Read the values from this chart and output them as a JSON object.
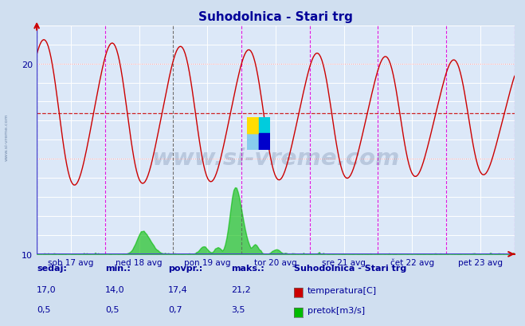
{
  "title": "Suhodolnica - Stari trg",
  "title_color": "#000099",
  "bg_color": "#d0dff0",
  "plot_bg_color": "#dce8f8",
  "grid_color": "#ffffff",
  "red_grid_color": "#ff9999",
  "ylim_temp": [
    10,
    25
  ],
  "ylim_display": [
    10,
    22
  ],
  "yticks": [
    10,
    20
  ],
  "y_minor_ticks": [
    15
  ],
  "temp_avg": 17.4,
  "temp_color": "#cc0000",
  "flow_color": "#00bb00",
  "avg_line_color": "#cc0000",
  "vline_color_magenta": "#dd00dd",
  "vline_color_black": "#333333",
  "x_labels": [
    "sob 17 avg",
    "ned 18 avg",
    "pon 19 avg",
    "tor 20 avg",
    "sre 21 avg",
    "čet 22 avg",
    "pet 23 avg"
  ],
  "x_label_color": "#000099",
  "watermark_text": "www.si-vreme.com",
  "watermark_color": "#1a3a6a",
  "watermark_alpha": 0.18,
  "sidebar_text": "www.si-vreme.com",
  "sidebar_color": "#1a3a6a",
  "legend_title": "Suhodolnica - Stari trg",
  "legend_title_color": "#000099",
  "legend_color": "#000099",
  "table_headers": [
    "sedaj:",
    "min.:",
    "povpr.:",
    "maks.:"
  ],
  "table_temp": [
    "17,0",
    "14,0",
    "17,4",
    "21,2"
  ],
  "table_flow": [
    "0,5",
    "0,5",
    "0,7",
    "3,5"
  ],
  "table_color": "#000099",
  "temp_label": "temperatura[C]",
  "flow_label": "pretok[m3/s]",
  "n_points": 336,
  "flow_scale": 5.0,
  "logo_yellow": "#ffdd00",
  "logo_cyan": "#00ccdd",
  "logo_blue": "#0000cc",
  "logo_teal": "#00aacc"
}
